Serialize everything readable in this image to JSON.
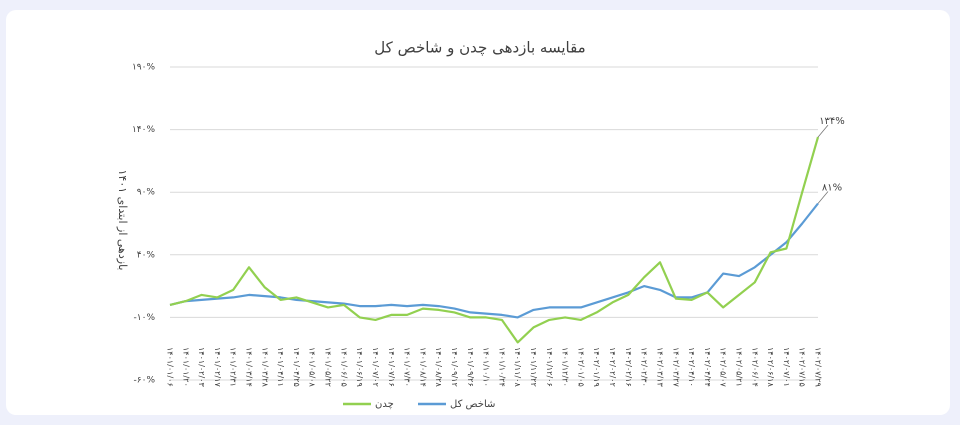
{
  "chart_data": {
    "type": "line",
    "title": "مقایسه بازدهی چدن و شاخص کل",
    "y_label": "بازدهی از ابتدای ۱۴۰۱",
    "categories": [
      "۱۴۰۱/۰۱/۰۶",
      "۱۴۰۱/۰۱/۲۰",
      "۱۴۰۱/۰۲/۰۳",
      "۱۴۰۱/۰۲/۱۷",
      "۱۴۰۱/۰۲/۳۱",
      "۱۴۰۱/۰۳/۱۴",
      "۱۴۰۱/۰۳/۲۸",
      "۱۴۰۱/۰۴/۱۱",
      "۱۴۰۱/۰۴/۲۵",
      "۱۴۰۱/۰۵/۰۸",
      "۱۴۰۱/۰۵/۲۲",
      "۱۴۰۱/۰۶/۰۵",
      "۱۴۰۱/۰۶/۱۹",
      "۱۴۰۱/۰۷/۰۲",
      "۱۴۰۱/۰۷/۱۶",
      "۱۴۰۱/۰۷/۳۰",
      "۱۴۰۱/۰۸/۱۴",
      "۱۴۰۱/۰۸/۲۸",
      "۱۴۰۱/۰۹/۱۲",
      "۱۴۰۱/۰۹/۲۶",
      "۱۴۰۱/۱۰/۱۰",
      "۱۴۰۱/۱۰/۲۴",
      "۱۴۰۱/۱۱/۰۸",
      "۱۴۰۱/۱۱/۲۲",
      "۱۴۰۱/۱۲/۰۶",
      "۱۴۰۱/۱۲/۲۰",
      "۱۴۰۲/۰۱/۰۵",
      "۱۴۰۲/۰۱/۱۹",
      "۱۴۰۲/۰۲/۰۲",
      "۱۴۰۲/۰۲/۱۶",
      "۱۴۰۲/۰۲/۳۰",
      "۱۴۰۲/۰۳/۱۳",
      "۱۴۰۲/۰۳/۲۷",
      "۱۴۰۲/۰۴/۱۰",
      "۱۴۰۲/۰۴/۲۴",
      "۱۴۰۲/۰۵/۰۷",
      "۱۴۰۲/۰۵/۲۱",
      "۱۴۰۲/۰۶/۰۴",
      "۱۴۰۲/۰۶/۱۸",
      "۱۴۰۲/۰۷/۰۱",
      "۱۴۰۲/۰۷/۱۵",
      "۱۴۰۲/۰۷/۲۹"
    ],
    "series": [
      {
        "name": "شاخص کل",
        "color": "#5b9bd5",
        "last_label": "۸۱%",
        "values": [
          0,
          3,
          4,
          5,
          6,
          8,
          7,
          6,
          4,
          3,
          2,
          1,
          -1,
          -1,
          0,
          -1,
          0,
          -1,
          -3,
          -6,
          -7,
          -8,
          -10,
          -4,
          -2,
          -2,
          -2,
          2,
          6,
          10,
          15,
          12,
          6,
          6,
          10,
          25,
          23,
          30,
          40,
          50,
          65,
          81
        ]
      },
      {
        "name": "چدن",
        "color": "#92d050",
        "last_label": "۱۳۴%",
        "values": [
          0,
          3,
          8,
          6,
          12,
          30,
          14,
          4,
          6,
          2,
          -2,
          0,
          -10,
          -12,
          -8,
          -8,
          -3,
          -4,
          -6,
          -10,
          -10,
          -12,
          -30,
          -18,
          -12,
          -10,
          -12,
          -6,
          2,
          8,
          22,
          34,
          5,
          4,
          10,
          -2,
          8,
          18,
          42,
          45,
          90,
          134
        ]
      }
    ],
    "ylim": [
      -60,
      190
    ],
    "yticks": [
      {
        "value": -60,
        "label": "-۶۰%"
      },
      {
        "value": -10,
        "label": "-۱۰%"
      },
      {
        "value": 40,
        "label": "۴۰%"
      },
      {
        "value": 90,
        "label": "۹۰%"
      },
      {
        "value": 140,
        "label": "۱۴۰%"
      },
      {
        "value": 190,
        "label": "۱۹۰%"
      }
    ],
    "grid": true
  }
}
